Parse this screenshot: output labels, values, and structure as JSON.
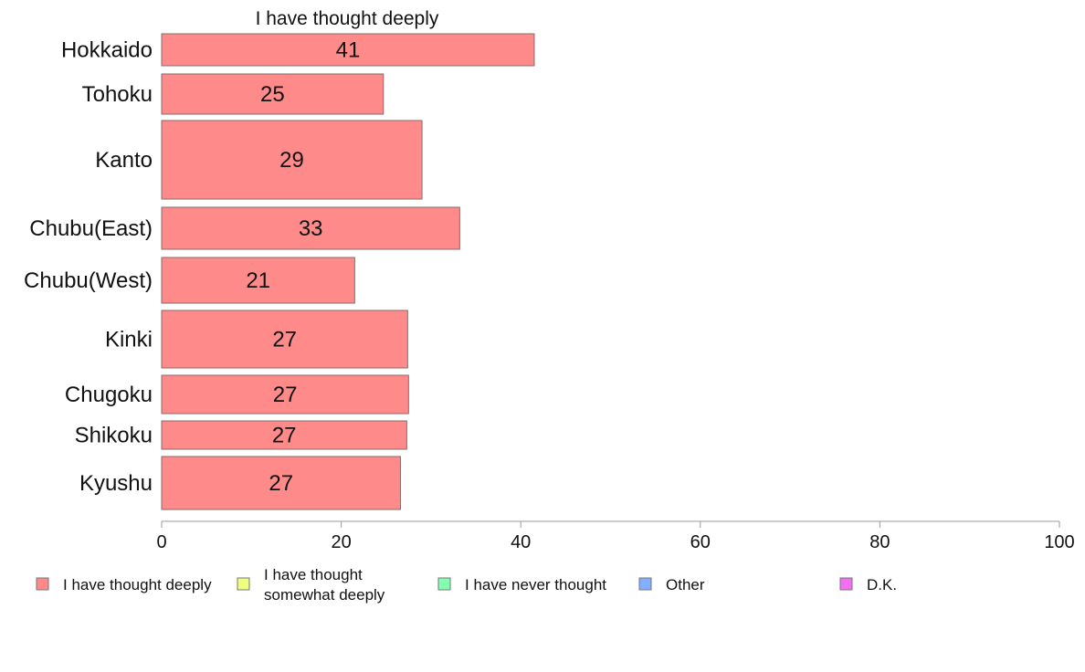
{
  "chart_data": {
    "type": "bar",
    "orientation": "horizontal",
    "title": "I have thought deeply",
    "categories": [
      "Hokkaido",
      "Tohoku",
      "Kanto",
      "Chubu(East)",
      "Chubu(West)",
      "Kinki",
      "Chugoku",
      "Shikoku",
      "Kyushu"
    ],
    "series": [
      {
        "name": "I have thought deeply",
        "color": "#ff8a8a",
        "values": [
          41.5,
          24.7,
          29.0,
          33.2,
          21.5,
          27.4,
          27.5,
          27.3,
          26.6
        ],
        "labels": [
          "41",
          "25",
          "29",
          "33",
          "21",
          "27",
          "27",
          "27",
          "27"
        ]
      }
    ],
    "xlim": [
      0,
      100
    ],
    "xticks": [
      "0",
      "20",
      "40",
      "60",
      "80",
      "100"
    ],
    "grid": false,
    "legend": {
      "placement": "bottom",
      "items": [
        {
          "lines": [
            "I have thought deeply"
          ],
          "color": "#ff8a8a"
        },
        {
          "lines": [
            "I have thought",
            "somewhat deeply"
          ],
          "color": "#eeff80"
        },
        {
          "lines": [
            "I have never thought"
          ],
          "color": "#80ffb0"
        },
        {
          "lines": [
            "Other"
          ],
          "color": "#80b0ff"
        },
        {
          "lines": [
            "D.K."
          ],
          "color": "#f070f0"
        }
      ]
    }
  }
}
